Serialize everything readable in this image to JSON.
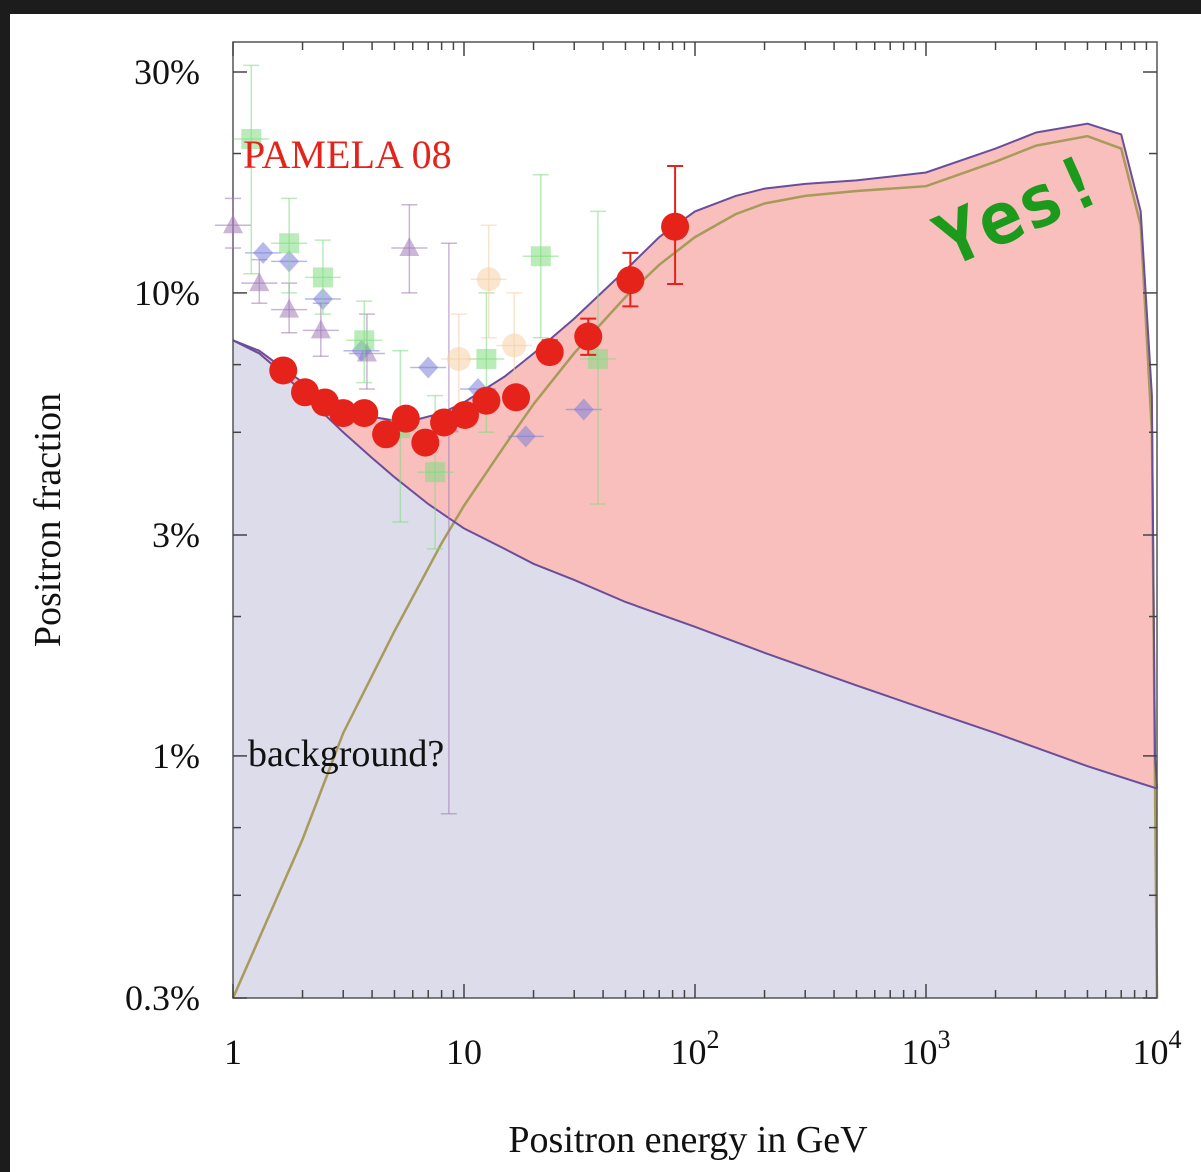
{
  "chart_data": {
    "type": "scatter",
    "title": "",
    "xlabel": "Positron energy in GeV",
    "ylabel": "Positron fraction",
    "x_scale": "log",
    "y_scale": "log",
    "xlim": [
      1,
      10000
    ],
    "ylim": [
      0.003,
      0.3
    ],
    "x_ticks": [
      {
        "value": 1,
        "label": "1"
      },
      {
        "value": 10,
        "label": "10"
      },
      {
        "value": 100,
        "label": "10",
        "sup": "2"
      },
      {
        "value": 1000,
        "label": "10",
        "sup": "3"
      },
      {
        "value": 10000,
        "label": "10",
        "sup": "4"
      }
    ],
    "y_ticks": [
      {
        "value": 0.3,
        "label": "30%"
      },
      {
        "value": 0.1,
        "label": "10%"
      },
      {
        "value": 0.03,
        "label": "3%"
      },
      {
        "value": 0.01,
        "label": "1%"
      },
      {
        "value": 0.003,
        "label": "0.3%"
      }
    ],
    "annotations": {
      "pamela": "PAMELA 08",
      "background": "background?",
      "yes": "Yes!"
    },
    "colors": {
      "pamela": "#e5231b",
      "background_fill": "#dcdcea",
      "signal_fill": "#f8bfbd",
      "total_line": "#6a4e9a",
      "signal_line": "#a89a5a",
      "yes": "#1c9a1c"
    },
    "background_curve": [
      [
        1,
        0.079
      ],
      [
        1.3,
        0.074
      ],
      [
        1.7,
        0.066
      ],
      [
        2.2,
        0.058
      ],
      [
        3,
        0.05
      ],
      [
        4,
        0.044
      ],
      [
        5,
        0.04
      ],
      [
        7,
        0.035
      ],
      [
        10,
        0.031
      ],
      [
        15,
        0.028
      ],
      [
        20,
        0.026
      ],
      [
        30,
        0.024
      ],
      [
        50,
        0.0215
      ],
      [
        100,
        0.019
      ],
      [
        200,
        0.0167
      ],
      [
        500,
        0.0142
      ],
      [
        1000,
        0.0126
      ],
      [
        2000,
        0.0112
      ],
      [
        5000,
        0.0095
      ],
      [
        10000,
        0.0085
      ]
    ],
    "total_curve": [
      [
        1,
        0.079
      ],
      [
        1.3,
        0.075
      ],
      [
        1.7,
        0.068
      ],
      [
        2.2,
        0.062
      ],
      [
        3,
        0.057
      ],
      [
        4,
        0.054
      ],
      [
        5,
        0.053
      ],
      [
        6,
        0.053
      ],
      [
        8,
        0.055
      ],
      [
        10,
        0.058
      ],
      [
        15,
        0.066
      ],
      [
        20,
        0.074
      ],
      [
        30,
        0.088
      ],
      [
        50,
        0.112
      ],
      [
        70,
        0.132
      ],
      [
        100,
        0.15
      ],
      [
        150,
        0.162
      ],
      [
        200,
        0.168
      ],
      [
        300,
        0.172
      ],
      [
        500,
        0.175
      ],
      [
        1000,
        0.182
      ],
      [
        2000,
        0.205
      ],
      [
        3000,
        0.222
      ],
      [
        5000,
        0.232
      ],
      [
        7000,
        0.22
      ],
      [
        8500,
        0.15
      ],
      [
        9500,
        0.06
      ],
      [
        9800,
        0.01
      ],
      [
        10000,
        0.0085
      ]
    ],
    "signal_curve": [
      [
        1,
        0.003
      ],
      [
        2,
        0.0066
      ],
      [
        3,
        0.0112
      ],
      [
        5,
        0.0186
      ],
      [
        8,
        0.0288
      ],
      [
        10,
        0.0347
      ],
      [
        15,
        0.0468
      ],
      [
        20,
        0.0575
      ],
      [
        30,
        0.0741
      ],
      [
        50,
        0.098
      ],
      [
        70,
        0.115
      ],
      [
        100,
        0.132
      ],
      [
        150,
        0.148
      ],
      [
        200,
        0.156
      ],
      [
        300,
        0.162
      ],
      [
        500,
        0.166
      ],
      [
        1000,
        0.17
      ],
      [
        2000,
        0.192
      ],
      [
        3000,
        0.208
      ],
      [
        5000,
        0.218
      ],
      [
        7000,
        0.205
      ],
      [
        8500,
        0.14
      ],
      [
        9500,
        0.05
      ],
      [
        9900,
        0.005
      ],
      [
        10000,
        0.003
      ]
    ],
    "series": [
      {
        "name": "PAMELA 08",
        "marker": "circle",
        "color": "#e5231b",
        "points": [
          {
            "x": 1.65,
            "y": 0.068
          },
          {
            "x": 2.05,
            "y": 0.061
          },
          {
            "x": 2.5,
            "y": 0.058
          },
          {
            "x": 3.0,
            "y": 0.055
          },
          {
            "x": 3.7,
            "y": 0.055
          },
          {
            "x": 4.6,
            "y": 0.0495
          },
          {
            "x": 5.6,
            "y": 0.0535
          },
          {
            "x": 6.8,
            "y": 0.0475
          },
          {
            "x": 8.2,
            "y": 0.0525
          },
          {
            "x": 10.1,
            "y": 0.0545
          },
          {
            "x": 12.5,
            "y": 0.0585
          },
          {
            "x": 16.8,
            "y": 0.0595
          },
          {
            "x": 23.5,
            "y": 0.0745,
            "ylo": 0.0705,
            "yhi": 0.079
          },
          {
            "x": 34.5,
            "y": 0.0805,
            "ylo": 0.0735,
            "yhi": 0.088
          },
          {
            "x": 52.5,
            "y": 0.1065,
            "ylo": 0.0935,
            "yhi": 0.122
          },
          {
            "x": 82,
            "y": 0.139,
            "ylo": 0.1045,
            "yhi": 0.188
          }
        ]
      },
      {
        "name": "",
        "marker": "triangle",
        "color": "#a07ab8",
        "points": [
          {
            "x": 1.0,
            "y": 0.14,
            "ylo": 0.125,
            "yhi": 0.16
          },
          {
            "x": 1.3,
            "y": 0.105,
            "ylo": 0.095,
            "yhi": 0.118
          },
          {
            "x": 1.75,
            "y": 0.092,
            "ylo": 0.082,
            "yhi": 0.105
          },
          {
            "x": 2.4,
            "y": 0.083,
            "ylo": 0.073,
            "yhi": 0.095
          },
          {
            "x": 3.8,
            "y": 0.074,
            "ylo": 0.062,
            "yhi": 0.09
          },
          {
            "x": 5.8,
            "y": 0.125,
            "ylo": 0.1,
            "yhi": 0.155
          },
          {
            "x": 8.6,
            "y": 0.052,
            "ylo": 0.0075,
            "yhi": 0.128
          }
        ]
      },
      {
        "name": "",
        "marker": "diamond",
        "color": "#7b80d8",
        "points": [
          {
            "x": 1.35,
            "y": 0.122
          },
          {
            "x": 1.75,
            "y": 0.117
          },
          {
            "x": 2.45,
            "y": 0.097
          },
          {
            "x": 3.6,
            "y": 0.075
          },
          {
            "x": 7.0,
            "y": 0.069
          },
          {
            "x": 11.5,
            "y": 0.062
          },
          {
            "x": 18.5,
            "y": 0.049
          },
          {
            "x": 33.0,
            "y": 0.056
          }
        ]
      },
      {
        "name": "",
        "marker": "square",
        "color": "#82dc82",
        "points": [
          {
            "x": 1.2,
            "y": 0.215,
            "ylo": 0.11,
            "yhi": 0.31
          },
          {
            "x": 1.75,
            "y": 0.128,
            "ylo": 0.1,
            "yhi": 0.16
          },
          {
            "x": 2.45,
            "y": 0.108,
            "ylo": 0.09,
            "yhi": 0.13
          },
          {
            "x": 3.7,
            "y": 0.079,
            "ylo": 0.064,
            "yhi": 0.096
          },
          {
            "x": 5.3,
            "y": 0.051,
            "ylo": 0.032,
            "yhi": 0.075
          },
          {
            "x": 7.5,
            "y": 0.041,
            "ylo": 0.028,
            "yhi": 0.06
          },
          {
            "x": 12.5,
            "y": 0.072,
            "ylo": 0.05,
            "yhi": 0.1
          },
          {
            "x": 21.5,
            "y": 0.12,
            "ylo": 0.08,
            "yhi": 0.18
          },
          {
            "x": 38.0,
            "y": 0.072,
            "ylo": 0.035,
            "yhi": 0.15
          }
        ]
      },
      {
        "name": "",
        "marker": "circle",
        "color": "#f5cfa6",
        "points": [
          {
            "x": 9.5,
            "y": 0.072,
            "ylo": 0.055,
            "yhi": 0.09
          },
          {
            "x": 12.8,
            "y": 0.107,
            "ylo": 0.08,
            "yhi": 0.14
          },
          {
            "x": 16.5,
            "y": 0.077,
            "ylo": 0.06,
            "yhi": 0.1
          }
        ]
      }
    ]
  }
}
